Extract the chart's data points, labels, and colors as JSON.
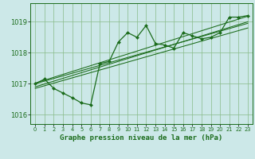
{
  "xlabel": "Graphe pression niveau de la mer (hPa)",
  "x_ticks": [
    0,
    1,
    2,
    3,
    4,
    5,
    6,
    7,
    8,
    9,
    10,
    11,
    12,
    13,
    14,
    15,
    16,
    17,
    18,
    19,
    20,
    21,
    22,
    23
  ],
  "xlim": [
    -0.5,
    23.5
  ],
  "ylim": [
    1015.7,
    1019.6
  ],
  "y_ticks": [
    1016,
    1017,
    1018,
    1019
  ],
  "bg_color": "#cce8e8",
  "grid_color": "#88bb88",
  "line_color": "#1a6b1a",
  "marker_color": "#1a6b1a",
  "data_y": [
    1017.0,
    1017.15,
    1016.85,
    1016.7,
    1016.55,
    1016.38,
    1016.32,
    1017.65,
    1017.72,
    1018.35,
    1018.65,
    1018.5,
    1018.88,
    1018.3,
    1018.25,
    1018.15,
    1018.65,
    1018.55,
    1018.45,
    1018.5,
    1018.65,
    1019.15,
    1019.15,
    1019.2
  ],
  "trend_lines": [
    {
      "x": [
        0,
        23
      ],
      "y": [
        1017.02,
        1019.18
      ]
    },
    {
      "x": [
        0,
        23
      ],
      "y": [
        1017.0,
        1018.95
      ]
    },
    {
      "x": [
        0,
        23
      ],
      "y": [
        1016.85,
        1018.8
      ]
    },
    {
      "x": [
        0,
        23
      ],
      "y": [
        1016.9,
        1019.0
      ]
    }
  ]
}
